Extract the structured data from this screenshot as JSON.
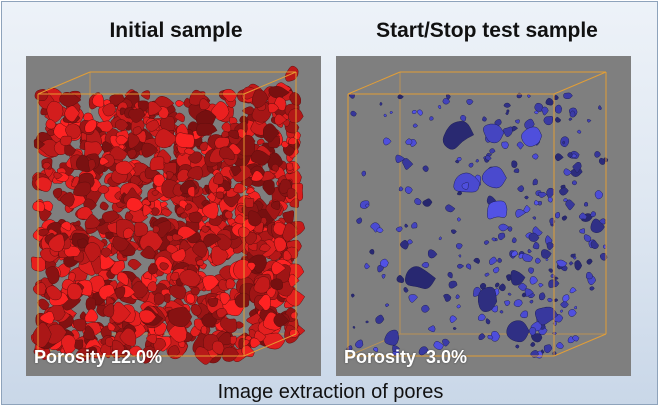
{
  "panels": {
    "left": {
      "title": "Initial sample",
      "porosity_label": "Porosity 12.0%",
      "porosity_value": 12.0,
      "pore_color": "#d71d1d"
    },
    "right": {
      "title": "Start/Stop test sample",
      "porosity_label": "Porosity  3.0%",
      "porosity_value": 3.0,
      "pore_color": "#4646c4"
    }
  },
  "caption": "Image extraction of pores",
  "colors": {
    "panel_background": "#7f7f7f",
    "bounding_box": "#e8a033",
    "frame_border": "#8ea3bb"
  }
}
